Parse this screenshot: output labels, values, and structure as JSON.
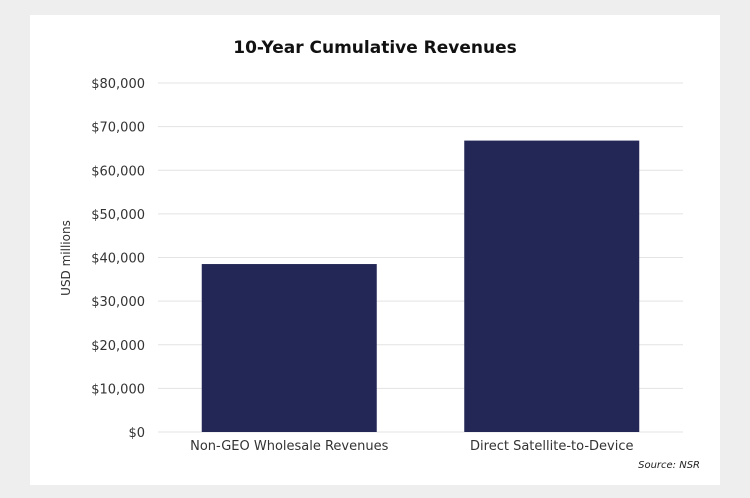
{
  "chart_data": {
    "type": "bar",
    "title": "10-Year Cumulative Revenues",
    "xlabel": "",
    "ylabel": "USD millions",
    "categories": [
      "Non-GEO Wholesale Revenues",
      "Direct Satellite-to-Device"
    ],
    "values": [
      38500,
      66800
    ],
    "ylim": [
      0,
      80000
    ],
    "yticks": [
      0,
      10000,
      20000,
      30000,
      40000,
      50000,
      60000,
      70000,
      80000
    ],
    "ytick_labels": [
      "$0",
      "$10,000",
      "$20,000",
      "$30,000",
      "$40,000",
      "$50,000",
      "$60,000",
      "$70,000",
      "$80,000"
    ],
    "grid": true,
    "legend": "none",
    "source": "Source: NSR",
    "colors": {
      "bar": "#232755",
      "grid": "#e3e3e3",
      "background": "#ffffff",
      "outer": "#eeeeee"
    }
  }
}
